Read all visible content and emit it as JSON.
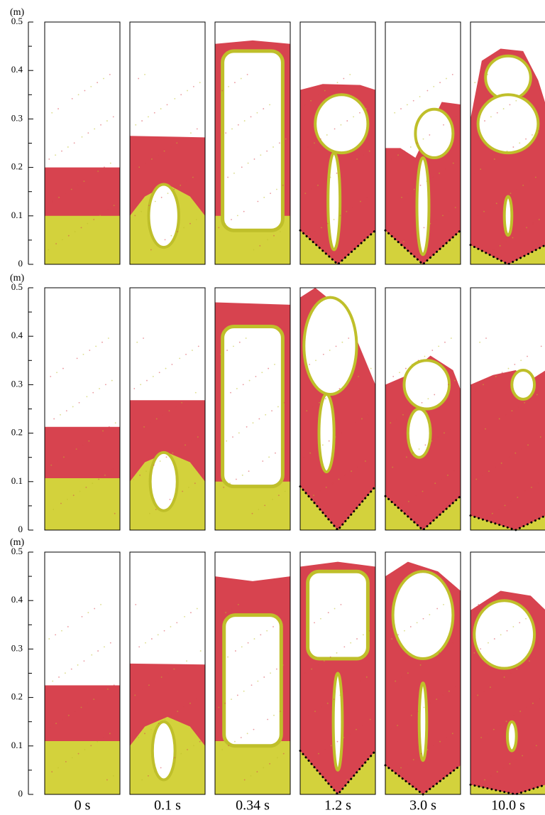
{
  "figure": {
    "y_axis": {
      "unit": "(m)",
      "ylim": [
        0,
        0.5
      ],
      "yticks": [
        0,
        0.1,
        0.2,
        0.3,
        0.4,
        0.5
      ]
    },
    "time_labels": [
      "0 s",
      "0.1 s",
      "0.34 s",
      "1.2 s",
      "3.0 s",
      "10.0 s"
    ]
  }
}
